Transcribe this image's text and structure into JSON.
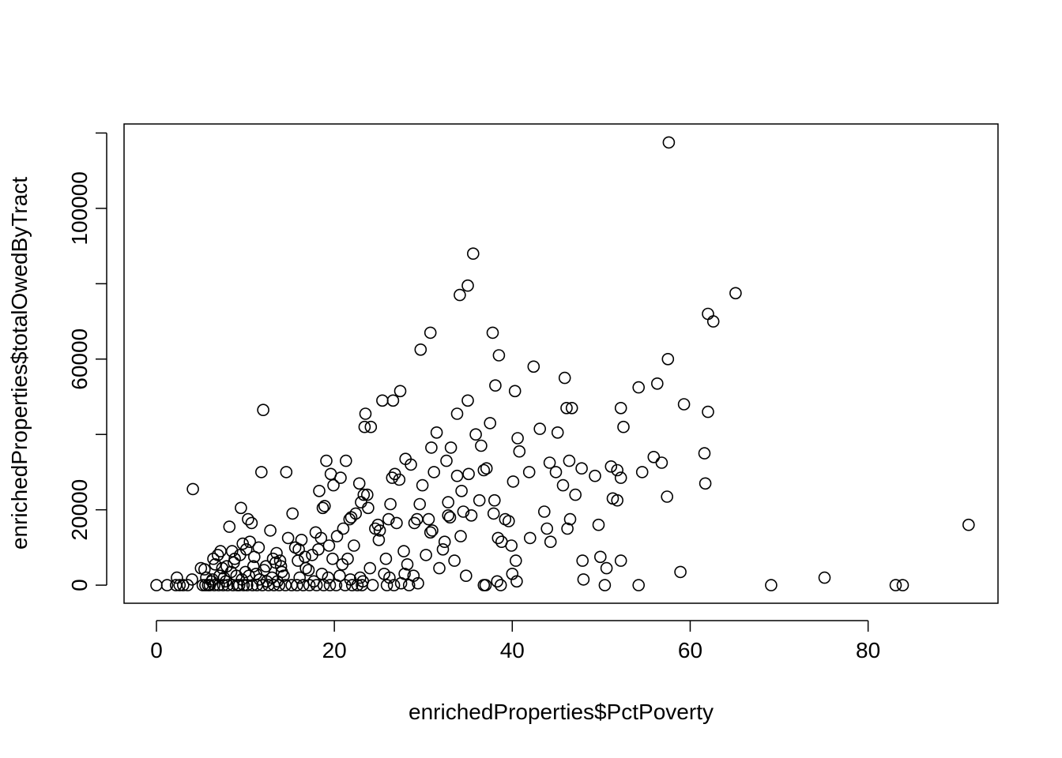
{
  "chart_data": {
    "type": "scatter",
    "title": "",
    "xlabel": "enrichedProperties$PctPoverty",
    "ylabel": "enrichedProperties$totalOwedByTract",
    "xlim": [
      -3.64,
      94.6
    ],
    "ylim": [
      -4800,
      122400
    ],
    "x_ticks": [
      0,
      20,
      40,
      60,
      80
    ],
    "x_tick_labels": [
      "0",
      "20",
      "40",
      "60",
      "80"
    ],
    "y_ticks": [
      0,
      20000,
      40000,
      60000,
      80000,
      100000,
      120000
    ],
    "y_tick_labels": [
      "0",
      "20000",
      "",
      "60000",
      "",
      "100000",
      ""
    ],
    "grid": false,
    "legend": "none",
    "marker": "open-circle",
    "points": [
      [
        0.0,
        0
      ],
      [
        1.2,
        0
      ],
      [
        2.2,
        0
      ],
      [
        2.6,
        0
      ],
      [
        3.0,
        0
      ],
      [
        3.5,
        0
      ],
      [
        2.3,
        2000
      ],
      [
        4.0,
        1500
      ],
      [
        4.1,
        25500
      ],
      [
        5.0,
        4500
      ],
      [
        5.4,
        4200
      ],
      [
        5.6,
        2000
      ],
      [
        5.8,
        0
      ],
      [
        6.2,
        1000
      ],
      [
        6.4,
        7000
      ],
      [
        6.6,
        5500
      ],
      [
        6.9,
        8000
      ],
      [
        7.2,
        9000
      ],
      [
        7.4,
        4500
      ],
      [
        7.6,
        2000
      ],
      [
        7.9,
        5000
      ],
      [
        8.2,
        15500
      ],
      [
        8.5,
        9000
      ],
      [
        8.8,
        7000
      ],
      [
        9.0,
        2500
      ],
      [
        9.3,
        0
      ],
      [
        9.5,
        20500
      ],
      [
        9.7,
        11000
      ],
      [
        10.0,
        3500
      ],
      [
        10.3,
        17500
      ],
      [
        10.5,
        11500
      ],
      [
        10.7,
        16500
      ],
      [
        10.9,
        5000
      ],
      [
        11.2,
        3000
      ],
      [
        11.5,
        10000
      ],
      [
        11.8,
        30000
      ],
      [
        12.0,
        46500
      ],
      [
        12.3,
        5000
      ],
      [
        12.8,
        14500
      ],
      [
        13.1,
        7000
      ],
      [
        13.5,
        8500
      ],
      [
        13.9,
        6500
      ],
      [
        14.3,
        2500
      ],
      [
        14.5,
        0
      ],
      [
        14.6,
        30000
      ],
      [
        14.8,
        12500
      ],
      [
        15.3,
        19000
      ],
      [
        15.6,
        10000
      ],
      [
        16.0,
        9500
      ],
      [
        16.3,
        12000
      ],
      [
        16.7,
        7500
      ],
      [
        17.1,
        4000
      ],
      [
        17.5,
        8000
      ],
      [
        17.9,
        14000
      ],
      [
        18.3,
        25000
      ],
      [
        18.5,
        12500
      ],
      [
        18.7,
        20500
      ],
      [
        18.9,
        21000
      ],
      [
        19.1,
        33000
      ],
      [
        19.4,
        10500
      ],
      [
        19.6,
        29500
      ],
      [
        19.9,
        26500
      ],
      [
        20.3,
        13000
      ],
      [
        20.7,
        28500
      ],
      [
        21.0,
        15000
      ],
      [
        21.3,
        33000
      ],
      [
        21.7,
        17500
      ],
      [
        21.9,
        18000
      ],
      [
        22.4,
        19000
      ],
      [
        22.8,
        27000
      ],
      [
        23.0,
        22000
      ],
      [
        23.3,
        24000
      ],
      [
        23.7,
        24000
      ],
      [
        23.8,
        20500
      ],
      [
        23.5,
        45500
      ],
      [
        23.4,
        42000
      ],
      [
        24.1,
        42000
      ],
      [
        24.6,
        15000
      ],
      [
        24.9,
        16000
      ],
      [
        25.1,
        14500
      ],
      [
        25.4,
        49000
      ],
      [
        25.8,
        7000
      ],
      [
        26.1,
        17500
      ],
      [
        26.3,
        21500
      ],
      [
        26.5,
        28500
      ],
      [
        26.6,
        49000
      ],
      [
        26.8,
        29500
      ],
      [
        27.0,
        16500
      ],
      [
        27.3,
        28000
      ],
      [
        27.4,
        51500
      ],
      [
        27.8,
        9000
      ],
      [
        28.0,
        33500
      ],
      [
        28.2,
        5500
      ],
      [
        28.6,
        32000
      ],
      [
        29.0,
        16500
      ],
      [
        29.3,
        17500
      ],
      [
        29.6,
        21500
      ],
      [
        29.7,
        62500
      ],
      [
        29.9,
        26500
      ],
      [
        30.3,
        8000
      ],
      [
        30.6,
        17500
      ],
      [
        30.8,
        14000
      ],
      [
        30.9,
        36500
      ],
      [
        30.8,
        67000
      ],
      [
        31.2,
        30000
      ],
      [
        31.5,
        40500
      ],
      [
        31.8,
        4500
      ],
      [
        32.4,
        11500
      ],
      [
        32.6,
        33000
      ],
      [
        32.8,
        22000
      ],
      [
        32.8,
        18500
      ],
      [
        33.1,
        36500
      ],
      [
        33.5,
        6500
      ],
      [
        33.8,
        45500
      ],
      [
        33.8,
        29000
      ],
      [
        34.1,
        77000
      ],
      [
        34.3,
        25000
      ],
      [
        34.5,
        19500
      ],
      [
        34.8,
        2500
      ],
      [
        35.1,
        29500
      ],
      [
        35.0,
        79500
      ],
      [
        35.0,
        49000
      ],
      [
        35.6,
        88000
      ],
      [
        35.9,
        40000
      ],
      [
        36.3,
        22500
      ],
      [
        36.5,
        37000
      ],
      [
        36.8,
        30500
      ],
      [
        37.1,
        31000
      ],
      [
        37.5,
        43000
      ],
      [
        37.8,
        67000
      ],
      [
        38.0,
        22500
      ],
      [
        38.1,
        53000
      ],
      [
        38.4,
        12500
      ],
      [
        38.5,
        61000
      ],
      [
        38.8,
        11500
      ],
      [
        39.2,
        17500
      ],
      [
        39.6,
        17000
      ],
      [
        39.9,
        10500
      ],
      [
        40.0,
        3000
      ],
      [
        40.1,
        27500
      ],
      [
        40.3,
        51500
      ],
      [
        40.4,
        6500
      ],
      [
        40.6,
        39000
      ],
      [
        40.8,
        35500
      ],
      [
        41.9,
        30000
      ],
      [
        42.0,
        12500
      ],
      [
        42.4,
        58000
      ],
      [
        43.1,
        41500
      ],
      [
        43.6,
        19500
      ],
      [
        43.9,
        15000
      ],
      [
        44.2,
        32500
      ],
      [
        44.3,
        11500
      ],
      [
        44.9,
        30000
      ],
      [
        45.1,
        40500
      ],
      [
        45.7,
        26500
      ],
      [
        45.9,
        55000
      ],
      [
        46.1,
        47000
      ],
      [
        46.2,
        15000
      ],
      [
        46.4,
        33000
      ],
      [
        46.5,
        17500
      ],
      [
        46.7,
        47000
      ],
      [
        47.1,
        24000
      ],
      [
        47.8,
        31000
      ],
      [
        47.9,
        6500
      ],
      [
        48.0,
        1500
      ],
      [
        49.3,
        29000
      ],
      [
        49.7,
        16000
      ],
      [
        49.9,
        7500
      ],
      [
        50.4,
        0
      ],
      [
        50.6,
        4500
      ],
      [
        51.1,
        31500
      ],
      [
        51.3,
        23000
      ],
      [
        51.8,
        22500
      ],
      [
        51.8,
        30500
      ],
      [
        52.2,
        28500
      ],
      [
        52.2,
        47000
      ],
      [
        52.2,
        6500
      ],
      [
        52.5,
        42000
      ],
      [
        54.2,
        52500
      ],
      [
        54.2,
        0
      ],
      [
        54.6,
        30000
      ],
      [
        55.9,
        34000
      ],
      [
        56.3,
        53500
      ],
      [
        56.8,
        32500
      ],
      [
        57.4,
        23500
      ],
      [
        57.5,
        60000
      ],
      [
        57.6,
        117500
      ],
      [
        58.9,
        3500
      ],
      [
        59.3,
        48000
      ],
      [
        61.6,
        35000
      ],
      [
        61.7,
        27000
      ],
      [
        62.0,
        46000
      ],
      [
        62.0,
        72000
      ],
      [
        62.6,
        70000
      ],
      [
        65.1,
        77500
      ],
      [
        69.1,
        0
      ],
      [
        75.1,
        2000
      ],
      [
        83.1,
        0
      ],
      [
        83.9,
        0
      ],
      [
        91.3,
        16000
      ],
      [
        5.2,
        0
      ],
      [
        5.5,
        0
      ],
      [
        6.0,
        0
      ],
      [
        6.5,
        0
      ],
      [
        7.0,
        0
      ],
      [
        7.5,
        0
      ],
      [
        8.0,
        0
      ],
      [
        8.6,
        0
      ],
      [
        9.1,
        0
      ],
      [
        9.8,
        0
      ],
      [
        10.2,
        0
      ],
      [
        10.8,
        0
      ],
      [
        11.3,
        0
      ],
      [
        11.9,
        0
      ],
      [
        12.6,
        0
      ],
      [
        13.2,
        0
      ],
      [
        13.8,
        0
      ],
      [
        15.2,
        0
      ],
      [
        15.8,
        0
      ],
      [
        16.5,
        0
      ],
      [
        17.2,
        0
      ],
      [
        18.0,
        0
      ],
      [
        18.8,
        0
      ],
      [
        19.5,
        0
      ],
      [
        20.2,
        0
      ],
      [
        21.2,
        0
      ],
      [
        22.0,
        0
      ],
      [
        22.6,
        0
      ],
      [
        23.1,
        0
      ],
      [
        24.3,
        0
      ],
      [
        25.9,
        0
      ],
      [
        26.7,
        0
      ],
      [
        27.5,
        500
      ],
      [
        28.4,
        0
      ],
      [
        29.4,
        500
      ],
      [
        36.8,
        0
      ],
      [
        37.0,
        0
      ],
      [
        38.3,
        1000
      ],
      [
        38.7,
        0
      ],
      [
        40.5,
        1000
      ],
      [
        6.3,
        1500
      ],
      [
        7.1,
        2500
      ],
      [
        7.8,
        1000
      ],
      [
        8.4,
        3500
      ],
      [
        9.6,
        1500
      ],
      [
        10.4,
        2500
      ],
      [
        11.6,
        1500
      ],
      [
        12.4,
        1000
      ],
      [
        13.0,
        2000
      ],
      [
        13.6,
        1000
      ],
      [
        14.1,
        3500
      ],
      [
        16.1,
        2000
      ],
      [
        17.7,
        1000
      ],
      [
        18.6,
        3000
      ],
      [
        19.3,
        2000
      ],
      [
        20.6,
        2500
      ],
      [
        21.8,
        1500
      ],
      [
        22.9,
        2000
      ],
      [
        23.2,
        1000
      ],
      [
        25.6,
        3000
      ],
      [
        26.2,
        2000
      ],
      [
        28.9,
        2500
      ],
      [
        32.2,
        9500
      ],
      [
        34.2,
        13000
      ],
      [
        35.4,
        18500
      ],
      [
        37.9,
        19000
      ],
      [
        31.0,
        14500
      ],
      [
        33.0,
        18000
      ],
      [
        25.0,
        12000
      ],
      [
        21.5,
        7000
      ],
      [
        22.2,
        10500
      ],
      [
        20.9,
        5500
      ],
      [
        15.9,
        6500
      ],
      [
        14.0,
        5000
      ],
      [
        12.1,
        4000
      ],
      [
        9.4,
        8000
      ],
      [
        8.7,
        6000
      ],
      [
        11.0,
        7500
      ],
      [
        10.1,
        9500
      ],
      [
        13.4,
        6000
      ],
      [
        16.8,
        4500
      ],
      [
        18.2,
        9500
      ],
      [
        19.8,
        7000
      ],
      [
        24.0,
        4500
      ],
      [
        27.9,
        3000
      ]
    ]
  }
}
